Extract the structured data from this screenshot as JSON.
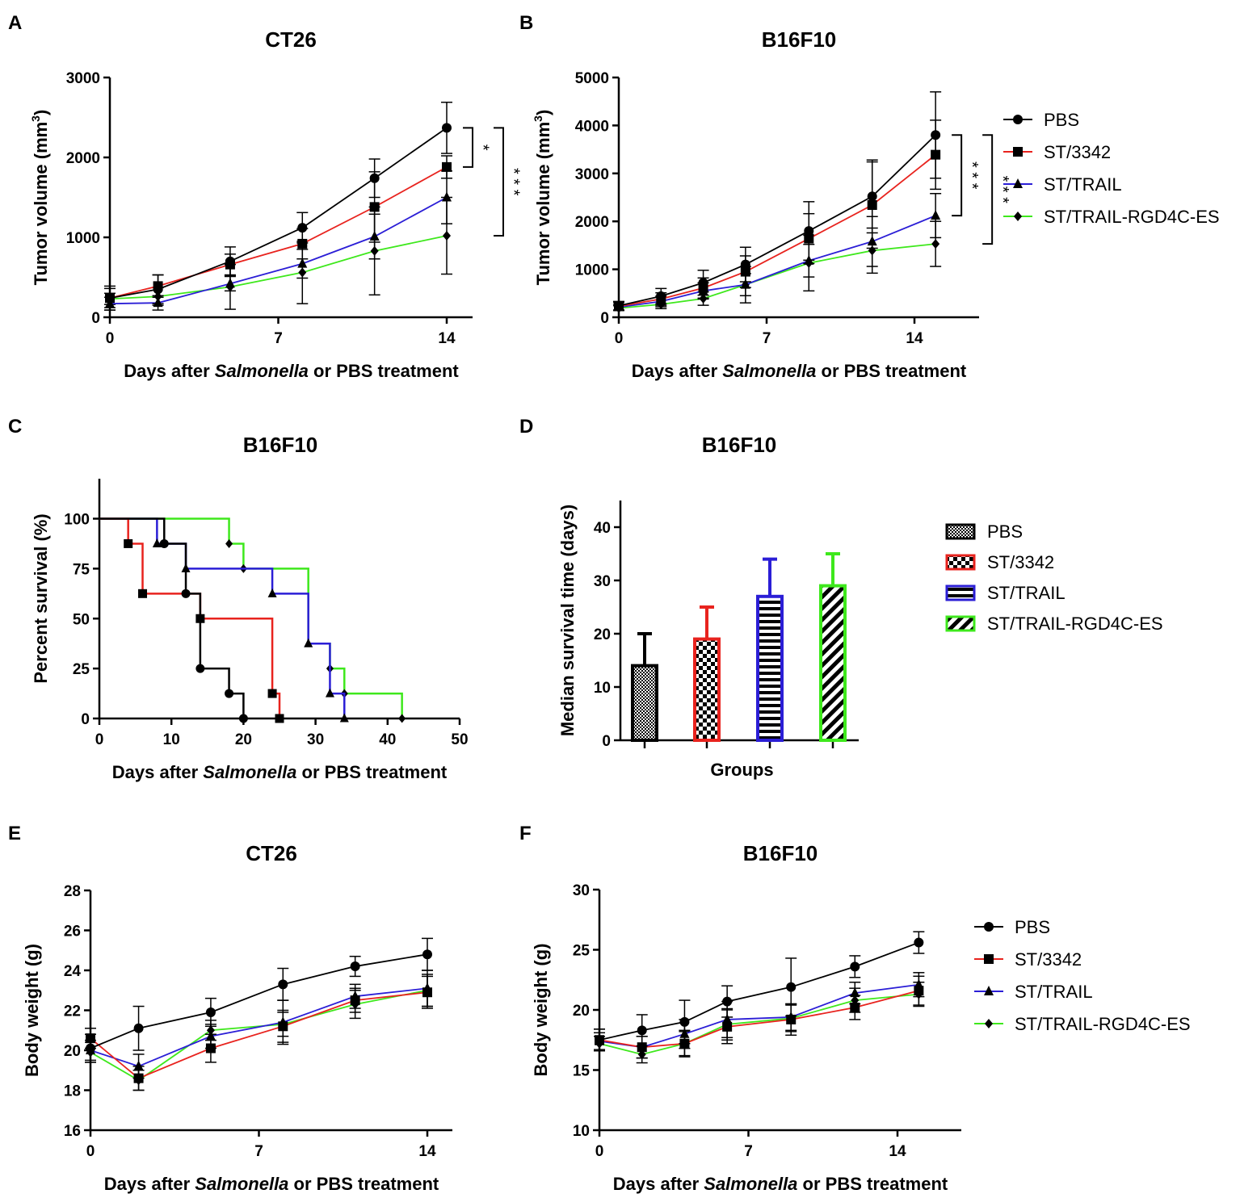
{
  "colors": {
    "PBS": "#000000",
    "ST/3342": "#e8231e",
    "ST/TRAIL": "#2b1ed6",
    "ST/TRAIL-RGD4C-ES": "#3ee81c"
  },
  "legend_groups": [
    "PBS",
    "ST/3342",
    "ST/TRAIL",
    "ST/TRAIL-RGD4C-ES"
  ],
  "chart_data": [
    {
      "panel": "A",
      "type": "line",
      "title": "CT26",
      "xlabel_parts": [
        "Days after ",
        "Salmonella",
        " or PBS treatment"
      ],
      "ylabel": "Tumor volume (mm",
      "ylabel_sup": "3",
      "ylabel_end": ")",
      "xlim": [
        0,
        16
      ],
      "ylim": [
        0,
        3000
      ],
      "xticks": [
        0,
        7,
        14
      ],
      "yticks": [
        0,
        1000,
        2000,
        3000
      ],
      "series": [
        {
          "name": "PBS",
          "marker": "circle",
          "x": [
            0,
            2,
            5,
            8,
            11,
            14
          ],
          "y": [
            240,
            350,
            700,
            1120,
            1740,
            2370
          ],
          "err": [
            150,
            180,
            180,
            190,
            240,
            320
          ]
        },
        {
          "name": "ST/3342",
          "marker": "square",
          "x": [
            0,
            2,
            5,
            8,
            11,
            14
          ],
          "y": [
            240,
            390,
            660,
            920,
            1380,
            1880
          ],
          "err": [
            120,
            140,
            130,
            190,
            440,
            140
          ]
        },
        {
          "name": "ST/TRAIL",
          "marker": "triangle",
          "x": [
            0,
            2,
            5,
            8,
            11,
            14
          ],
          "y": [
            170,
            180,
            420,
            670,
            1010,
            1500
          ],
          "err": [
            80,
            90,
            90,
            180,
            280,
            330
          ]
        },
        {
          "name": "ST/TRAIL-RGD4C-ES",
          "marker": "diamond",
          "x": [
            0,
            2,
            5,
            8,
            11,
            14
          ],
          "y": [
            230,
            260,
            380,
            560,
            830,
            1020
          ],
          "err": [
            70,
            110,
            280,
            390,
            550,
            480
          ]
        }
      ],
      "significance": [
        {
          "label": "*",
          "from": 1880,
          "to": 2370
        },
        {
          "label": "* * *",
          "from": 1020,
          "to": 2370
        }
      ]
    },
    {
      "panel": "B",
      "type": "line",
      "title": "B16F10",
      "xlabel_parts": [
        "Days after ",
        "Salmonella",
        " or PBS treatment"
      ],
      "ylabel": "Tumor volume (mm",
      "ylabel_sup": "3",
      "ylabel_end": ")",
      "xlim": [
        0,
        17
      ],
      "ylim": [
        0,
        5000
      ],
      "xticks": [
        0,
        7,
        14
      ],
      "yticks": [
        0,
        1000,
        2000,
        3000,
        4000,
        5000
      ],
      "series": [
        {
          "name": "PBS",
          "marker": "circle",
          "x": [
            0,
            2,
            4,
            6,
            9,
            12,
            15
          ],
          "y": [
            240,
            440,
            720,
            1100,
            1800,
            2520,
            3800
          ],
          "err": [
            90,
            160,
            260,
            360,
            610,
            760,
            900
          ]
        },
        {
          "name": "ST/3342",
          "marker": "square",
          "x": [
            0,
            2,
            4,
            6,
            9,
            12,
            15
          ],
          "y": [
            230,
            380,
            610,
            950,
            1640,
            2340,
            3390
          ],
          "err": [
            80,
            130,
            210,
            330,
            520,
            900,
            720
          ]
        },
        {
          "name": "ST/TRAIL",
          "marker": "triangle",
          "x": [
            0,
            2,
            4,
            6,
            9,
            12,
            15
          ],
          "y": [
            210,
            330,
            550,
            680,
            1180,
            1580,
            2120
          ],
          "err": [
            60,
            110,
            170,
            230,
            340,
            520,
            460
          ]
        },
        {
          "name": "ST/TRAIL-RGD4C-ES",
          "marker": "diamond",
          "x": [
            0,
            2,
            4,
            6,
            9,
            12,
            15
          ],
          "y": [
            190,
            270,
            390,
            680,
            1130,
            1390,
            1530
          ],
          "err": [
            50,
            90,
            140,
            380,
            580,
            470,
            470
          ]
        }
      ],
      "significance": [
        {
          "label": "* * *",
          "from": 2120,
          "to": 3800
        },
        {
          "label": "* * *",
          "from": 1530,
          "to": 3800
        }
      ]
    },
    {
      "panel": "C",
      "type": "survival",
      "title": "B16F10",
      "xlabel_parts": [
        "Days after ",
        "Salmonella",
        " or PBS treatment"
      ],
      "ylabel": "Percent survival (%)",
      "ylabel_sup": "",
      "ylabel_end": "",
      "xlim": [
        0,
        50
      ],
      "ylim": [
        0,
        120
      ],
      "xticks": [
        0,
        10,
        20,
        30,
        40,
        50
      ],
      "yticks": [
        0,
        25,
        50,
        75,
        100
      ],
      "series": [
        {
          "name": "PBS",
          "marker": "circle",
          "steps": [
            [
              0,
              100
            ],
            [
              9,
              87.5
            ],
            [
              12,
              62.5
            ],
            [
              14,
              25
            ],
            [
              18,
              12.5
            ],
            [
              20,
              0
            ]
          ],
          "marks": [
            [
              9,
              87.5
            ],
            [
              12,
              62.5
            ],
            [
              14,
              25
            ],
            [
              18,
              12.5
            ],
            [
              20,
              0
            ]
          ]
        },
        {
          "name": "ST/3342",
          "marker": "square",
          "steps": [
            [
              0,
              100
            ],
            [
              4,
              87.5
            ],
            [
              6,
              62.5
            ],
            [
              14,
              50
            ],
            [
              24,
              12.5
            ],
            [
              25,
              0
            ]
          ],
          "marks": [
            [
              4,
              87.5
            ],
            [
              6,
              62.5
            ],
            [
              14,
              50
            ],
            [
              24,
              12.5
            ],
            [
              25,
              0
            ]
          ]
        },
        {
          "name": "ST/TRAIL",
          "marker": "triangle",
          "steps": [
            [
              0,
              100
            ],
            [
              8,
              87.5
            ],
            [
              12,
              75
            ],
            [
              24,
              62.5
            ],
            [
              29,
              37.5
            ],
            [
              32,
              12.5
            ],
            [
              34,
              0
            ]
          ],
          "marks": [
            [
              8,
              87.5
            ],
            [
              12,
              75
            ],
            [
              24,
              62.5
            ],
            [
              29,
              37.5
            ],
            [
              32,
              12.5
            ],
            [
              34,
              0
            ]
          ]
        },
        {
          "name": "ST/TRAIL-RGD4C-ES",
          "marker": "diamond",
          "steps": [
            [
              0,
              100
            ],
            [
              18,
              87.5
            ],
            [
              20,
              75
            ],
            [
              29,
              37.5
            ],
            [
              32,
              25
            ],
            [
              34,
              12.5
            ],
            [
              42,
              0
            ]
          ],
          "marks": [
            [
              18,
              87.5
            ],
            [
              20,
              75
            ],
            [
              32,
              25
            ],
            [
              34,
              12.5
            ],
            [
              42,
              0
            ]
          ]
        }
      ]
    },
    {
      "panel": "D",
      "type": "bar",
      "title": "B16F10",
      "xlabel": "Groups",
      "ylabel": "Median survival time (days)",
      "ylim": [
        0,
        45
      ],
      "yticks": [
        0,
        10,
        20,
        30,
        40
      ],
      "categories": [
        "PBS",
        "ST/3342",
        "ST/TRAIL",
        "ST/TRAIL-RGD4C-ES"
      ],
      "values": [
        14,
        19,
        27,
        29
      ],
      "err": [
        6,
        6,
        7,
        6
      ],
      "patterns": [
        "checker-fine",
        "checker-coarse",
        "horizontal",
        "diagonal"
      ]
    },
    {
      "panel": "E",
      "type": "line",
      "title": "CT26",
      "xlabel_parts": [
        "Days after ",
        "Salmonella",
        " or PBS treatment"
      ],
      "ylabel": "Body weight (g)",
      "ylabel_sup": "",
      "ylabel_end": "",
      "xlim": [
        0,
        15
      ],
      "ylim": [
        16,
        28
      ],
      "xticks": [
        0,
        7,
        14
      ],
      "yticks": [
        16,
        18,
        20,
        22,
        24,
        26,
        28
      ],
      "series": [
        {
          "name": "PBS",
          "marker": "circle",
          "x": [
            0,
            2,
            5,
            8,
            11,
            14
          ],
          "y": [
            20.1,
            21.1,
            21.9,
            23.3,
            24.2,
            24.8
          ],
          "err": [
            0.7,
            1.1,
            0.7,
            0.8,
            0.5,
            0.8
          ]
        },
        {
          "name": "ST/3342",
          "marker": "square",
          "x": [
            0,
            2,
            5,
            8,
            11,
            14
          ],
          "y": [
            20.6,
            18.6,
            20.1,
            21.2,
            22.5,
            22.9
          ],
          "err": [
            0.5,
            0.6,
            0.7,
            0.8,
            0.6,
            0.8
          ]
        },
        {
          "name": "ST/TRAIL",
          "marker": "triangle",
          "x": [
            0,
            2,
            5,
            8,
            11,
            14
          ],
          "y": [
            20.0,
            19.2,
            20.7,
            21.4,
            22.7,
            23.1
          ],
          "err": [
            0.5,
            0.6,
            0.6,
            1.1,
            0.6,
            0.9
          ]
        },
        {
          "name": "ST/TRAIL-RGD4C-ES",
          "marker": "diamond",
          "x": [
            0,
            2,
            5,
            8,
            11,
            14
          ],
          "y": [
            19.9,
            18.5,
            21.0,
            21.3,
            22.3,
            23.0
          ],
          "err": [
            0.5,
            0.5,
            0.5,
            0.6,
            0.7,
            0.8
          ]
        }
      ]
    },
    {
      "panel": "F",
      "type": "line",
      "title": "B16F10",
      "xlabel_parts": [
        "Days after ",
        "Salmonella",
        " or PBS treatment"
      ],
      "ylabel": "Body weight (g)",
      "ylabel_sup": "",
      "ylabel_end": "",
      "xlim": [
        0,
        17
      ],
      "ylim": [
        10,
        30
      ],
      "xticks": [
        0,
        7,
        14
      ],
      "yticks": [
        10,
        15,
        20,
        25,
        30
      ],
      "series": [
        {
          "name": "PBS",
          "marker": "circle",
          "x": [
            0,
            2,
            4,
            6,
            9,
            12,
            15
          ],
          "y": [
            17.5,
            18.3,
            19.0,
            20.7,
            21.9,
            23.6,
            25.6
          ],
          "err": [
            0.9,
            1.3,
            1.8,
            1.3,
            2.4,
            0.9,
            0.9
          ]
        },
        {
          "name": "ST/3342",
          "marker": "square",
          "x": [
            0,
            2,
            4,
            6,
            9,
            12,
            15
          ],
          "y": [
            17.5,
            16.9,
            17.2,
            18.6,
            19.2,
            20.2,
            21.6
          ],
          "err": [
            0.9,
            0.9,
            1.1,
            1.4,
            1.3,
            1.0,
            1.2
          ]
        },
        {
          "name": "ST/TRAIL",
          "marker": "triangle",
          "x": [
            0,
            2,
            4,
            6,
            9,
            12,
            15
          ],
          "y": [
            17.4,
            16.9,
            18.0,
            19.2,
            19.4,
            21.4,
            22.1
          ],
          "err": [
            0.7,
            0.9,
            1.2,
            1.5,
            1.1,
            0.9,
            1.0
          ]
        },
        {
          "name": "ST/TRAIL-RGD4C-ES",
          "marker": "diamond",
          "x": [
            0,
            2,
            4,
            6,
            9,
            12,
            15
          ],
          "y": [
            17.2,
            16.3,
            17.2,
            18.8,
            19.3,
            20.8,
            21.3
          ],
          "err": [
            0.6,
            0.7,
            1.0,
            1.3,
            1.1,
            1.0,
            1.0
          ]
        }
      ]
    }
  ]
}
